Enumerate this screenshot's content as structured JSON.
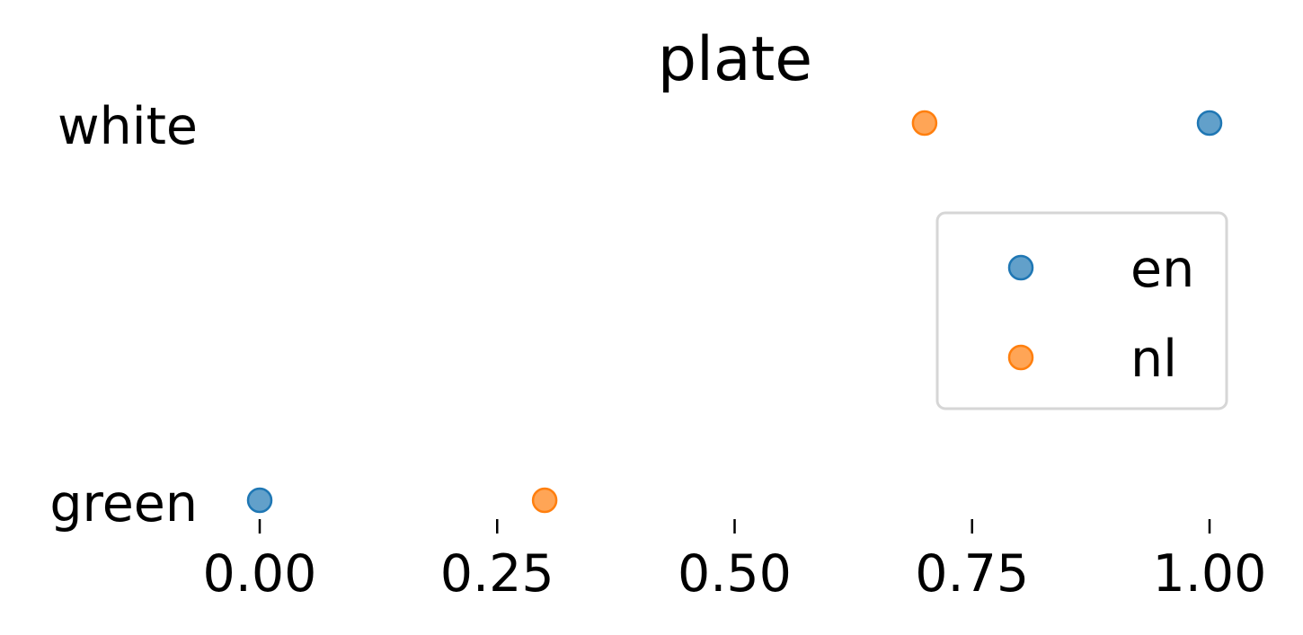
{
  "chart_data": {
    "type": "scatter",
    "title": "plate",
    "xlabel": "",
    "ylabel": "",
    "categories": [
      "green",
      "white"
    ],
    "xlim": [
      0,
      1
    ],
    "x_ticks": [
      "0.00",
      "0.25",
      "0.50",
      "0.75",
      "1.00"
    ],
    "x_tick_values": [
      0,
      0.25,
      0.5,
      0.75,
      1
    ],
    "grid": false,
    "legend_position": "right",
    "series": [
      {
        "name": "en",
        "color": "#1f77b4",
        "points": [
          {
            "category": "white",
            "x": 1.0
          },
          {
            "category": "green",
            "x": 0.0
          }
        ]
      },
      {
        "name": "nl",
        "color": "#ff7f0e",
        "points": [
          {
            "category": "white",
            "x": 0.7
          },
          {
            "category": "green",
            "x": 0.3
          }
        ]
      }
    ]
  }
}
